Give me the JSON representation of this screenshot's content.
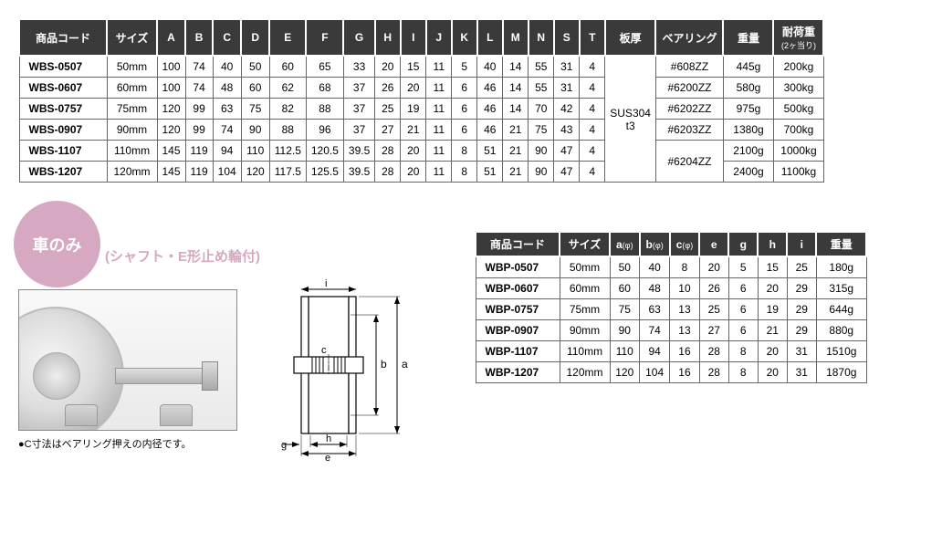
{
  "table1": {
    "headers": [
      "商品コード",
      "サイズ",
      "A",
      "B",
      "C",
      "D",
      "E",
      "F",
      "G",
      "H",
      "I",
      "J",
      "K",
      "L",
      "M",
      "N",
      "S",
      "T",
      "板厚",
      "ベアリング",
      "重量",
      "耐荷重"
    ],
    "load_sub": "(2ヶ当り)",
    "itaatsu_value": "SUS304\nt3",
    "rows": [
      {
        "code": "WBS-0507",
        "size": "50mm",
        "dims": [
          "100",
          "74",
          "40",
          "50",
          "60",
          "65",
          "33",
          "20",
          "15",
          "11",
          "5",
          "40",
          "14",
          "55",
          "31",
          "4"
        ],
        "bearing": "#608ZZ",
        "weight": "445g",
        "load": "200kg"
      },
      {
        "code": "WBS-0607",
        "size": "60mm",
        "dims": [
          "100",
          "74",
          "48",
          "60",
          "62",
          "68",
          "37",
          "26",
          "20",
          "11",
          "6",
          "46",
          "14",
          "55",
          "31",
          "4"
        ],
        "bearing": "#6200ZZ",
        "weight": "580g",
        "load": "300kg"
      },
      {
        "code": "WBS-0757",
        "size": "75mm",
        "dims": [
          "120",
          "99",
          "63",
          "75",
          "82",
          "88",
          "37",
          "25",
          "19",
          "11",
          "6",
          "46",
          "14",
          "70",
          "42",
          "4"
        ],
        "bearing": "#6202ZZ",
        "weight": "975g",
        "load": "500kg"
      },
      {
        "code": "WBS-0907",
        "size": "90mm",
        "dims": [
          "120",
          "99",
          "74",
          "90",
          "88",
          "96",
          "37",
          "27",
          "21",
          "11",
          "6",
          "46",
          "21",
          "75",
          "43",
          "4"
        ],
        "bearing": "#6203ZZ",
        "weight": "1380g",
        "load": "700kg"
      },
      {
        "code": "WBS-1107",
        "size": "110mm",
        "dims": [
          "145",
          "119",
          "94",
          "110",
          "112.5",
          "120.5",
          "39.5",
          "28",
          "20",
          "11",
          "8",
          "51",
          "21",
          "90",
          "47",
          "4"
        ],
        "bearing": "#6204ZZ",
        "weight": "2100g",
        "load": "1000kg"
      },
      {
        "code": "WBS-1207",
        "size": "120mm",
        "dims": [
          "145",
          "119",
          "104",
          "120",
          "117.5",
          "125.5",
          "39.5",
          "28",
          "20",
          "11",
          "8",
          "51",
          "21",
          "90",
          "47",
          "4"
        ],
        "bearing": "",
        "weight": "2400g",
        "load": "1100kg"
      }
    ],
    "bearing_spans": [
      1,
      1,
      1,
      1,
      2
    ]
  },
  "section2": {
    "badge": "車のみ",
    "subtitle": "(シャフト・E形止め輪付)",
    "note": "●C寸法はベアリング押えの内径です。",
    "diagram_labels": [
      "a",
      "b",
      "c",
      "e",
      "g",
      "h",
      "i"
    ]
  },
  "table2": {
    "headers": [
      "商品コード",
      "サイズ",
      "a(φ)",
      "b(φ)",
      "c(φ)",
      "e",
      "g",
      "h",
      "i",
      "重量"
    ],
    "rows": [
      {
        "code": "WBP-0507",
        "size": "50mm",
        "v": [
          "50",
          "40",
          "8",
          "20",
          "5",
          "15",
          "25"
        ],
        "wt": "180g"
      },
      {
        "code": "WBP-0607",
        "size": "60mm",
        "v": [
          "60",
          "48",
          "10",
          "26",
          "6",
          "20",
          "29"
        ],
        "wt": "315g"
      },
      {
        "code": "WBP-0757",
        "size": "75mm",
        "v": [
          "75",
          "63",
          "13",
          "25",
          "6",
          "19",
          "29"
        ],
        "wt": "644g"
      },
      {
        "code": "WBP-0907",
        "size": "90mm",
        "v": [
          "90",
          "74",
          "13",
          "27",
          "6",
          "21",
          "29"
        ],
        "wt": "880g"
      },
      {
        "code": "WBP-1107",
        "size": "110mm",
        "v": [
          "110",
          "94",
          "16",
          "28",
          "8",
          "20",
          "31"
        ],
        "wt": "1510g"
      },
      {
        "code": "WBP-1207",
        "size": "120mm",
        "v": [
          "120",
          "104",
          "16",
          "28",
          "8",
          "20",
          "31"
        ],
        "wt": "1870g"
      }
    ]
  }
}
